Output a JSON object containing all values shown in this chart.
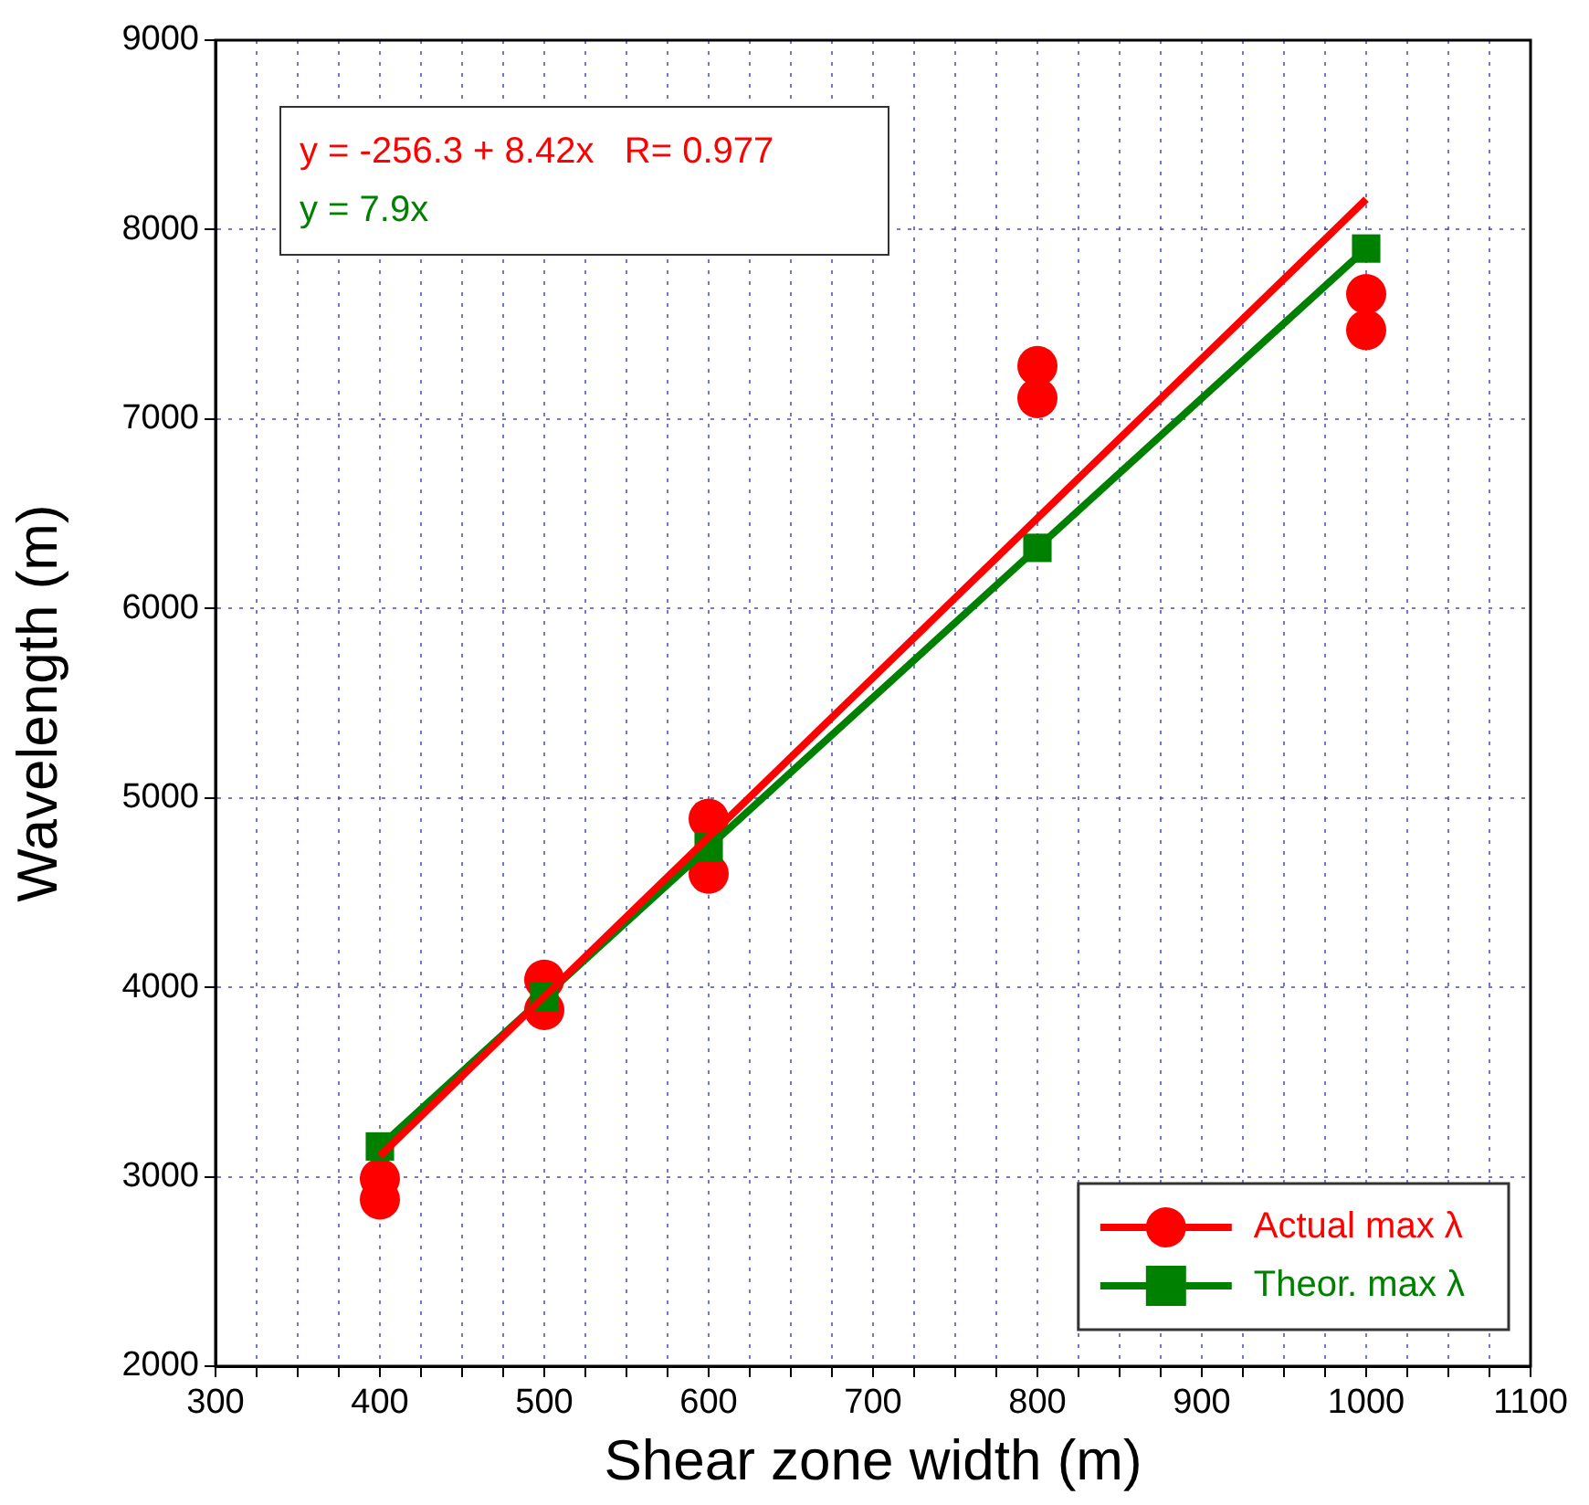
{
  "chart_data": {
    "type": "scatter",
    "xlabel": "Shear zone width (m)",
    "ylabel": "Wavelength (m)",
    "xlim": [
      300,
      1100
    ],
    "xticks": [
      300,
      {
        "value": 325,
        "label": null
      },
      {
        "value": 350,
        "label": null
      },
      {
        "value": 375,
        "label": null
      },
      400,
      {
        "value": 425,
        "label": null
      },
      {
        "value": 450,
        "label": null
      },
      {
        "value": 475,
        "label": null
      },
      500,
      {
        "value": 525,
        "label": null
      },
      {
        "value": 550,
        "label": null
      },
      {
        "value": 575,
        "label": null
      },
      600,
      {
        "value": 625,
        "label": null
      },
      {
        "value": 650,
        "label": null
      },
      {
        "value": 675,
        "label": null
      },
      700,
      {
        "value": 725,
        "label": null
      },
      {
        "value": 750,
        "label": null
      },
      {
        "value": 775,
        "label": null
      },
      800,
      {
        "value": 825,
        "label": null
      },
      {
        "value": 850,
        "label": null
      },
      {
        "value": 875,
        "label": null
      },
      900,
      {
        "value": 925,
        "label": null
      },
      {
        "value": 950,
        "label": null
      },
      {
        "value": 975,
        "label": null
      },
      1000,
      {
        "value": 1025,
        "label": null
      },
      {
        "value": 1050,
        "label": null
      },
      {
        "value": 1075,
        "label": null
      },
      1100
    ],
    "ylim": [
      2000,
      9000
    ],
    "yticks": [
      2000,
      3000,
      4000,
      5000,
      6000,
      7000,
      8000,
      9000
    ],
    "grid": true,
    "legend": "bottom right",
    "annotations": [
      "y = -256.3 + 8.42x   R= 0.977",
      "y = 7.9x"
    ],
    "series": [
      {
        "name": "Actual max λ",
        "marker": "circle",
        "color": "#ff0000",
        "x": [
          400,
          400,
          500,
          500,
          600,
          600,
          800,
          800,
          1000,
          1000
        ],
        "values": [
          2990,
          2880,
          4040,
          3880,
          4890,
          4600,
          7280,
          7110,
          7660,
          7470
        ]
      },
      {
        "type": "line",
        "marker": "none",
        "color": "#ff0000",
        "x": [
          400,
          1000
        ],
        "values": [
          3110,
          8160
        ]
      },
      {
        "name": "Theor. max λ",
        "type": "line",
        "marker": "square",
        "color": "#008000",
        "x": [
          400,
          500,
          600,
          800,
          1000
        ],
        "values": [
          3160,
          3950,
          4740,
          6320,
          7900
        ]
      }
    ]
  }
}
